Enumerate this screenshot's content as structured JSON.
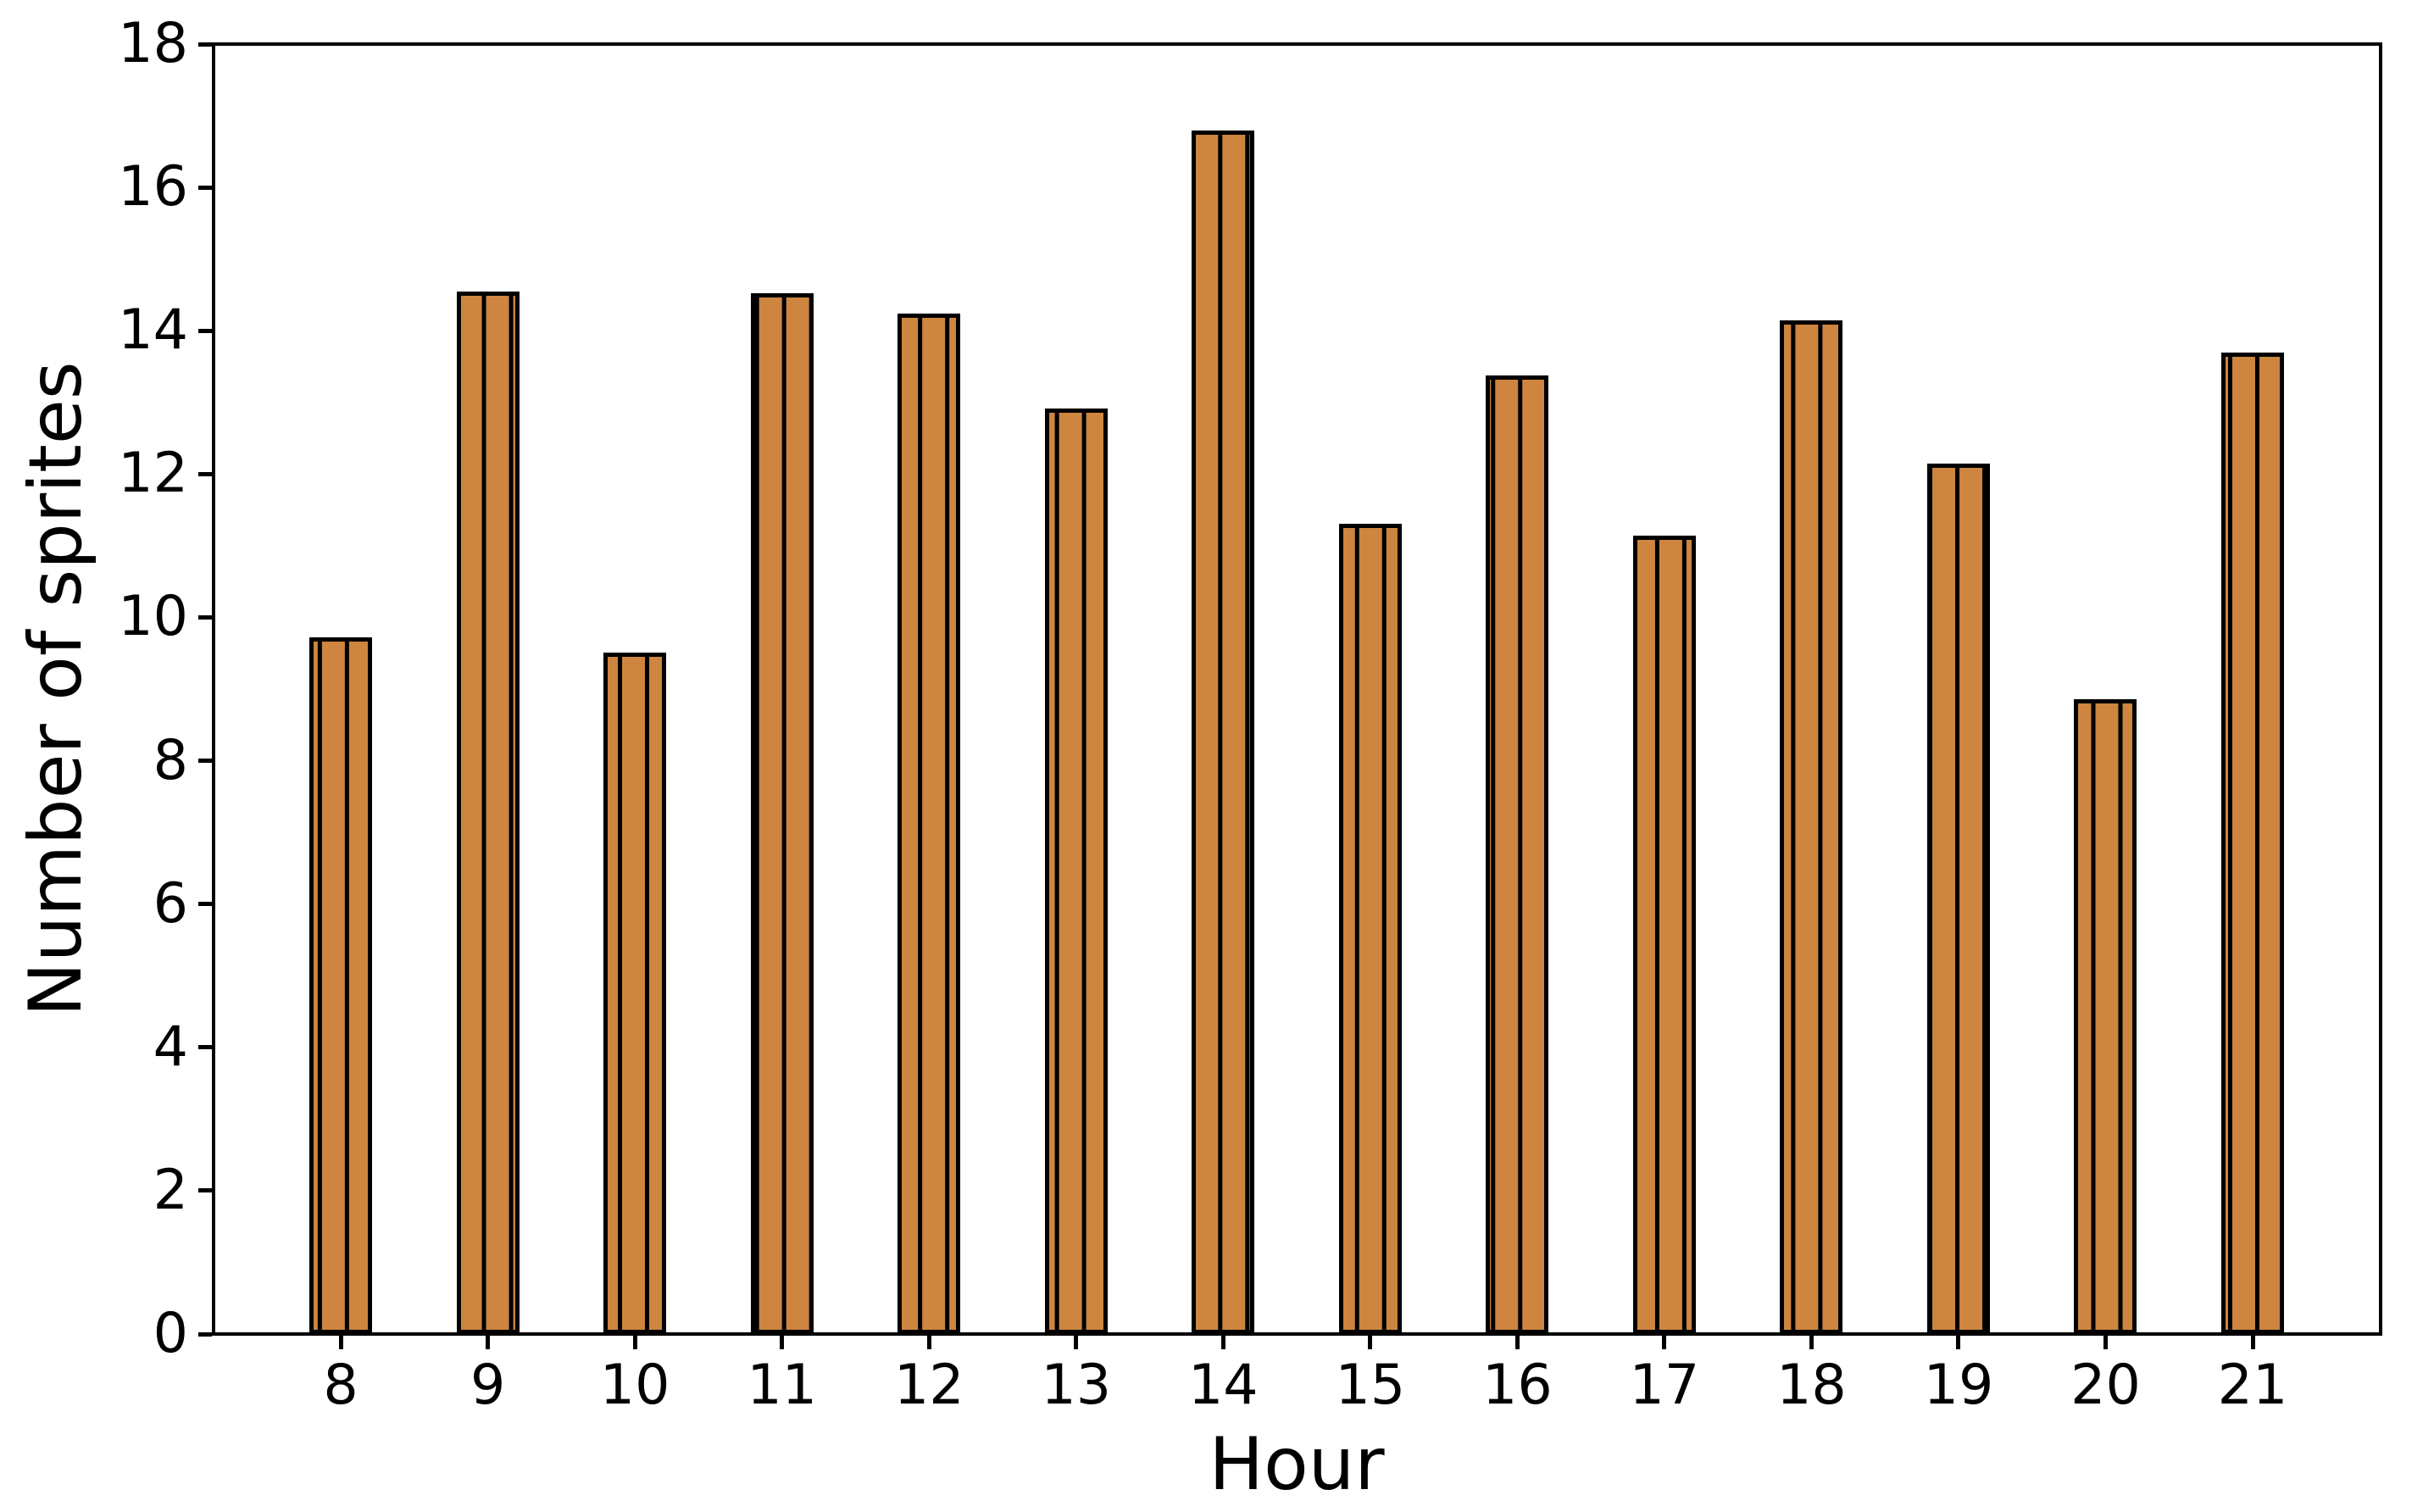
{
  "figure": {
    "background_color": "#ffffff",
    "text_color": "#000000",
    "axis_color": "#000000"
  },
  "chart_data": {
    "type": "bar",
    "title": "",
    "xlabel": "Hour",
    "ylabel": "Number of sprites",
    "categories": [
      "8",
      "9",
      "10",
      "11",
      "12",
      "13",
      "14",
      "15",
      "16",
      "17",
      "18",
      "19",
      "20",
      "21"
    ],
    "x_numeric": [
      8,
      9,
      10,
      11,
      12,
      13,
      14,
      15,
      16,
      17,
      18,
      19,
      20,
      21
    ],
    "values": [
      9.72,
      14.55,
      9.51,
      14.52,
      14.24,
      12.91,
      16.79,
      11.31,
      13.37,
      11.14,
      14.14,
      12.14,
      8.86,
      13.69
    ],
    "y_ticks": [
      0,
      2,
      4,
      6,
      8,
      10,
      12,
      14,
      16,
      18
    ],
    "y_tick_labels": [
      "0",
      "2",
      "4",
      "6",
      "8",
      "10",
      "12",
      "14",
      "16",
      "18"
    ],
    "ylim": [
      0,
      18
    ],
    "xlim": [
      7.135,
      21.87
    ],
    "bar_width_x_units": 0.4265,
    "grid": false,
    "legend": "none",
    "bar_fill_color": "#CD853F",
    "bar_edge_color": "#000000",
    "bar_hatch": "vertical-lines"
  }
}
